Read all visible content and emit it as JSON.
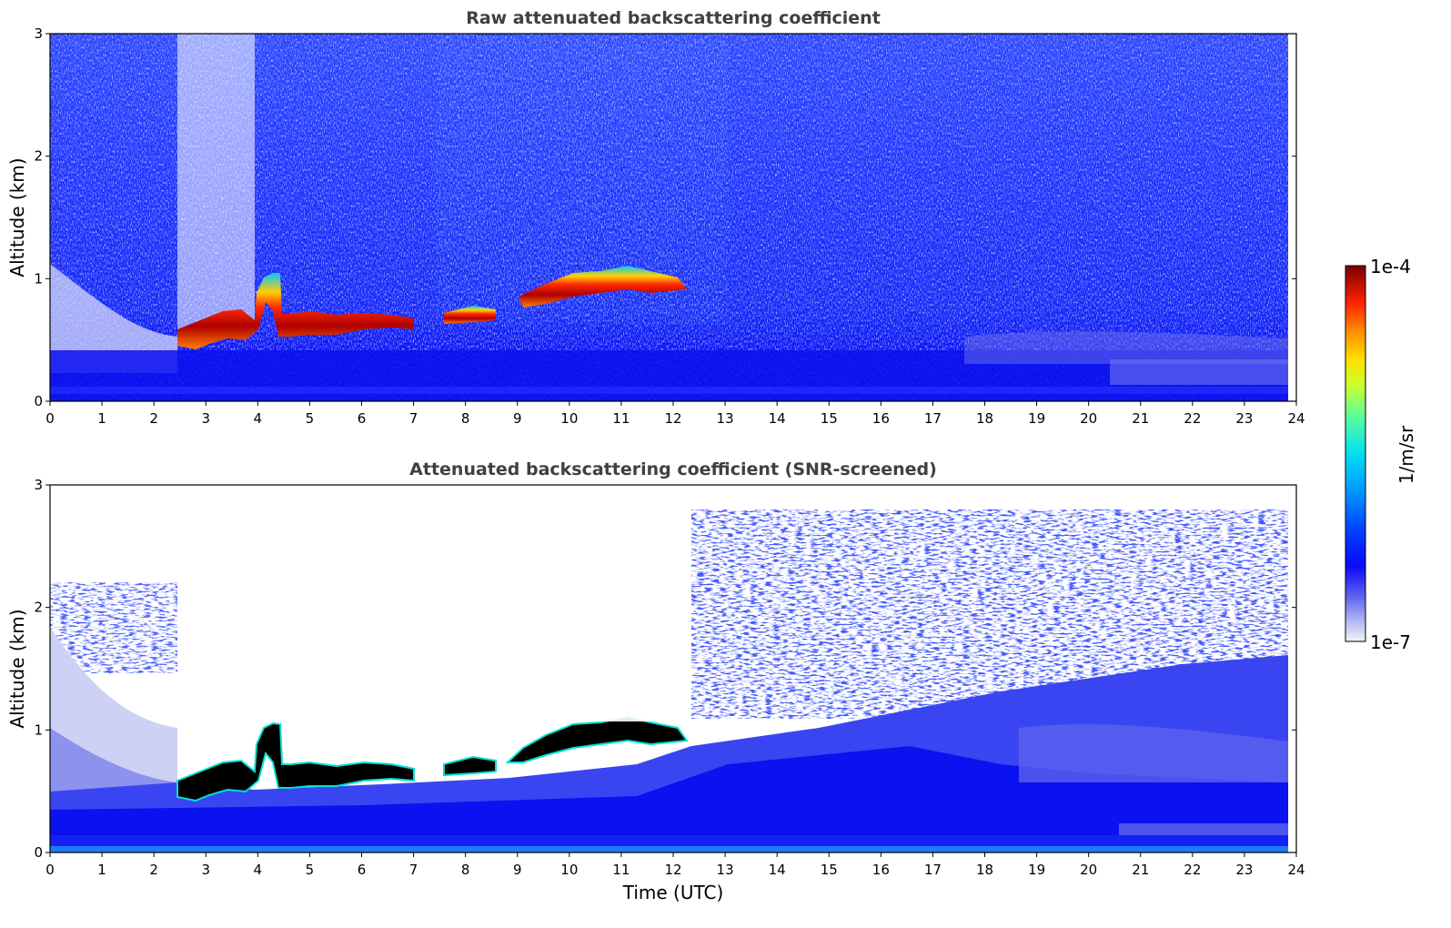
{
  "chart_data": [
    {
      "type": "heatmap",
      "title": "Raw attenuated backscattering coefficient",
      "xlabel": "",
      "ylabel": "Altitude (km)",
      "xlim": [
        0,
        24
      ],
      "ylim": [
        0,
        3
      ],
      "xticks": [
        "0",
        "1",
        "2",
        "3",
        "4",
        "5",
        "6",
        "7",
        "8",
        "9",
        "10",
        "11",
        "12",
        "13",
        "14",
        "15",
        "16",
        "17",
        "18",
        "19",
        "20",
        "21",
        "22",
        "23",
        "24"
      ],
      "yticks": [
        "0",
        "1",
        "2",
        "3"
      ],
      "data_end_time": 23.8,
      "layers": [
        {
          "name": "cloud base",
          "points": [
            [
              2.5,
              0.52
            ],
            [
              3.0,
              0.55
            ],
            [
              3.5,
              0.62
            ],
            [
              3.9,
              0.6
            ],
            [
              4.0,
              0.7
            ],
            [
              4.2,
              0.92
            ],
            [
              4.4,
              0.98
            ],
            [
              4.5,
              0.7
            ],
            [
              5.0,
              0.64
            ],
            [
              5.5,
              0.61
            ],
            [
              6.0,
              0.63
            ],
            [
              6.5,
              0.64
            ],
            [
              7.0,
              0.64
            ],
            [
              7.7,
              0.7
            ],
            [
              8.5,
              0.7
            ],
            [
              9.0,
              0.85
            ],
            [
              9.5,
              0.92
            ],
            [
              10.0,
              0.96
            ],
            [
              10.5,
              0.99
            ],
            [
              11.0,
              1.0
            ],
            [
              11.5,
              0.98
            ],
            [
              12.2,
              0.97
            ]
          ]
        }
      ],
      "notes": "noisy background signal decreasing with altitude; aerosol boundary layer below ~0.5 km"
    },
    {
      "type": "heatmap",
      "title": "Attenuated backscattering coefficient (SNR-screened)",
      "xlabel": "Time (UTC)",
      "ylabel": "Altitude (km)",
      "xlim": [
        0,
        24
      ],
      "ylim": [
        0,
        3
      ],
      "xticks": [
        "0",
        "1",
        "2",
        "3",
        "4",
        "5",
        "6",
        "7",
        "8",
        "9",
        "10",
        "11",
        "12",
        "13",
        "14",
        "15",
        "16",
        "17",
        "18",
        "19",
        "20",
        "21",
        "22",
        "23",
        "24"
      ],
      "yticks": [
        "0",
        "1",
        "2",
        "3"
      ],
      "data_end_time": 23.8,
      "layers": [
        {
          "name": "cloud base",
          "points": [
            [
              2.5,
              0.52
            ],
            [
              3.0,
              0.55
            ],
            [
              3.5,
              0.62
            ],
            [
              3.9,
              0.6
            ],
            [
              4.0,
              0.7
            ],
            [
              4.2,
              0.92
            ],
            [
              4.4,
              0.98
            ],
            [
              4.5,
              0.7
            ],
            [
              5.0,
              0.64
            ],
            [
              5.5,
              0.61
            ],
            [
              6.0,
              0.63
            ],
            [
              6.5,
              0.64
            ],
            [
              7.0,
              0.64
            ],
            [
              7.7,
              0.7
            ],
            [
              8.5,
              0.7
            ],
            [
              9.0,
              0.85
            ],
            [
              9.5,
              0.92
            ],
            [
              10.0,
              0.96
            ],
            [
              10.5,
              0.99
            ],
            [
              11.0,
              1.0
            ],
            [
              11.5,
              0.98
            ],
            [
              12.2,
              0.97
            ]
          ]
        }
      ]
    }
  ],
  "colorbar": {
    "label": "1/m/sr",
    "max_label": "1e-4",
    "min_label": "1e-7",
    "colormap": "jet",
    "scale": "log"
  },
  "colors": {
    "background_blue": "#0a14f0",
    "light_aerosol": "#b8bdf5",
    "cloud_core_screened": "#000000",
    "title_gray": "#404040"
  }
}
